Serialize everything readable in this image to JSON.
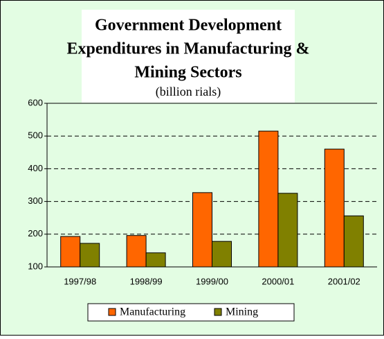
{
  "chart_data": {
    "type": "bar",
    "title": [
      "Government Development",
      "Expenditures in Manufacturing &",
      "Mining Sectors"
    ],
    "subtitle": "(billion rials)",
    "categories": [
      "1997/98",
      "1998/99",
      "1999/00",
      "2000/01",
      "2001/02"
    ],
    "series": [
      {
        "name": "Manufacturing",
        "color": "#ff6600",
        "values": [
          193,
          196,
          327,
          515,
          460
        ]
      },
      {
        "name": "Mining",
        "color": "#808000",
        "values": [
          172,
          143,
          178,
          325,
          256
        ]
      }
    ],
    "ylim": [
      100,
      600
    ],
    "yticks": [
      100,
      200,
      300,
      400,
      500,
      600
    ],
    "grid": true,
    "legend": "bottom"
  }
}
